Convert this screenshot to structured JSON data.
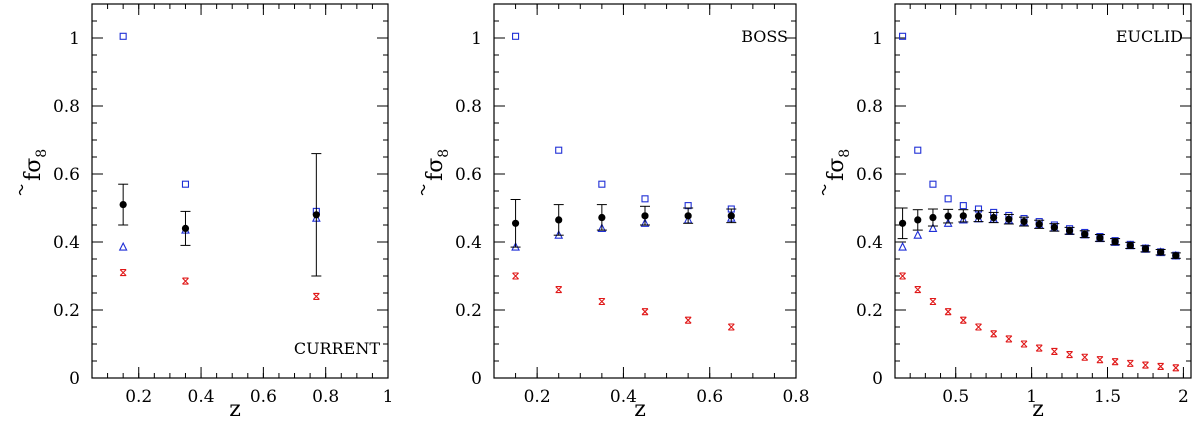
{
  "chart_data": [
    {
      "type": "scatter",
      "label": "CURRENT",
      "label_position": "bottom-right",
      "xlabel": "z",
      "ylabel_main": "f",
      "ylabel_sub": "8",
      "xlim": [
        0.05,
        1.0
      ],
      "ylim": [
        0,
        1.1
      ],
      "xticks": [
        {
          "value": 0.2,
          "label": "0.2"
        },
        {
          "value": 0.4,
          "label": "0.4"
        },
        {
          "value": 0.6,
          "label": "0.6"
        },
        {
          "value": 0.8,
          "label": "0.8"
        },
        {
          "value": 1.0,
          "label": "1"
        }
      ],
      "xminor_step": 0.05,
      "yticks": [
        {
          "value": 0,
          "label": "0"
        },
        {
          "value": 0.2,
          "label": "0.2"
        },
        {
          "value": 0.4,
          "label": "0.4"
        },
        {
          "value": 0.6,
          "label": "0.6"
        },
        {
          "value": 0.8,
          "label": "0.8"
        },
        {
          "value": 1.0,
          "label": "1"
        }
      ],
      "yminor_step": 0.05,
      "measurements": [
        {
          "x": 0.15,
          "y": 0.51,
          "low": 0.45,
          "high": 0.57
        },
        {
          "x": 0.35,
          "y": 0.44,
          "low": 0.39,
          "high": 0.49
        },
        {
          "x": 0.77,
          "y": 0.48,
          "low": 0.3,
          "high": 0.66
        }
      ],
      "squares": [
        {
          "x": 0.15,
          "y": 1.005
        },
        {
          "x": 0.35,
          "y": 0.57
        },
        {
          "x": 0.77,
          "y": 0.49
        }
      ],
      "triangles": [
        {
          "x": 0.15,
          "y": 0.385
        },
        {
          "x": 0.35,
          "y": 0.435
        },
        {
          "x": 0.77,
          "y": 0.47
        }
      ],
      "stars": [
        {
          "x": 0.15,
          "y": 0.31
        },
        {
          "x": 0.35,
          "y": 0.285
        },
        {
          "x": 0.77,
          "y": 0.24
        }
      ]
    },
    {
      "type": "scatter",
      "label": "BOSS",
      "label_position": "top-right",
      "xlabel": "z",
      "ylabel_main": "f",
      "ylabel_sub": "8",
      "xlim": [
        0.1,
        0.8
      ],
      "ylim": [
        0,
        1.1
      ],
      "xticks": [
        {
          "value": 0.2,
          "label": "0.2"
        },
        {
          "value": 0.4,
          "label": "0.4"
        },
        {
          "value": 0.6,
          "label": "0.6"
        },
        {
          "value": 0.8,
          "label": "0.8"
        }
      ],
      "xminor_step": 0.05,
      "yticks": [
        {
          "value": 0,
          "label": "0"
        },
        {
          "value": 0.2,
          "label": "0.2"
        },
        {
          "value": 0.4,
          "label": "0.4"
        },
        {
          "value": 0.6,
          "label": "0.6"
        },
        {
          "value": 0.8,
          "label": "0.8"
        },
        {
          "value": 1.0,
          "label": "1"
        }
      ],
      "yminor_step": 0.05,
      "measurements": [
        {
          "x": 0.15,
          "y": 0.455,
          "low": 0.385,
          "high": 0.525
        },
        {
          "x": 0.25,
          "y": 0.465,
          "low": 0.42,
          "high": 0.51
        },
        {
          "x": 0.35,
          "y": 0.472,
          "low": 0.435,
          "high": 0.51
        },
        {
          "x": 0.45,
          "y": 0.477,
          "low": 0.45,
          "high": 0.505
        },
        {
          "x": 0.55,
          "y": 0.477,
          "low": 0.455,
          "high": 0.5
        },
        {
          "x": 0.65,
          "y": 0.477,
          "low": 0.457,
          "high": 0.497
        }
      ],
      "squares": [
        {
          "x": 0.15,
          "y": 1.005
        },
        {
          "x": 0.25,
          "y": 0.67
        },
        {
          "x": 0.35,
          "y": 0.57
        },
        {
          "x": 0.45,
          "y": 0.527
        },
        {
          "x": 0.55,
          "y": 0.507
        },
        {
          "x": 0.65,
          "y": 0.497
        }
      ],
      "triangles": [
        {
          "x": 0.15,
          "y": 0.385
        },
        {
          "x": 0.25,
          "y": 0.42
        },
        {
          "x": 0.35,
          "y": 0.44
        },
        {
          "x": 0.45,
          "y": 0.455
        },
        {
          "x": 0.55,
          "y": 0.465
        },
        {
          "x": 0.65,
          "y": 0.47
        }
      ],
      "stars": [
        {
          "x": 0.15,
          "y": 0.3
        },
        {
          "x": 0.25,
          "y": 0.26
        },
        {
          "x": 0.35,
          "y": 0.225
        },
        {
          "x": 0.45,
          "y": 0.195
        },
        {
          "x": 0.55,
          "y": 0.17
        },
        {
          "x": 0.65,
          "y": 0.15
        }
      ]
    },
    {
      "type": "scatter",
      "label": "EUCLID",
      "label_position": "top-right",
      "xlabel": "z",
      "ylabel_main": "f",
      "ylabel_sub": "8",
      "xlim": [
        0.1,
        2.05
      ],
      "ylim": [
        0,
        1.1
      ],
      "xticks": [
        {
          "value": 0.5,
          "label": "0.5"
        },
        {
          "value": 1.0,
          "label": "1"
        },
        {
          "value": 1.5,
          "label": "1.5"
        },
        {
          "value": 2.0,
          "label": "2"
        }
      ],
      "xminor_step": 0.1,
      "yticks": [
        {
          "value": 0,
          "label": "0"
        },
        {
          "value": 0.2,
          "label": "0.2"
        },
        {
          "value": 0.4,
          "label": "0.4"
        },
        {
          "value": 0.6,
          "label": "0.6"
        },
        {
          "value": 0.8,
          "label": "0.8"
        },
        {
          "value": 1.0,
          "label": "1"
        }
      ],
      "yminor_step": 0.05,
      "measurements": [
        {
          "x": 0.15,
          "y": 0.455,
          "low": 0.41,
          "high": 0.5
        },
        {
          "x": 0.25,
          "y": 0.465,
          "low": 0.435,
          "high": 0.495
        },
        {
          "x": 0.35,
          "y": 0.472,
          "low": 0.447,
          "high": 0.497
        },
        {
          "x": 0.45,
          "y": 0.476,
          "low": 0.456,
          "high": 0.496
        },
        {
          "x": 0.55,
          "y": 0.477,
          "low": 0.459,
          "high": 0.495
        },
        {
          "x": 0.65,
          "y": 0.476,
          "low": 0.46,
          "high": 0.492
        },
        {
          "x": 0.75,
          "y": 0.472,
          "low": 0.457,
          "high": 0.487
        },
        {
          "x": 0.85,
          "y": 0.467,
          "low": 0.453,
          "high": 0.481
        },
        {
          "x": 0.95,
          "y": 0.46,
          "low": 0.447,
          "high": 0.473
        },
        {
          "x": 1.05,
          "y": 0.452,
          "low": 0.44,
          "high": 0.464
        },
        {
          "x": 1.15,
          "y": 0.443,
          "low": 0.432,
          "high": 0.454
        },
        {
          "x": 1.25,
          "y": 0.433,
          "low": 0.423,
          "high": 0.443
        },
        {
          "x": 1.35,
          "y": 0.423,
          "low": 0.413,
          "high": 0.433
        },
        {
          "x": 1.45,
          "y": 0.412,
          "low": 0.402,
          "high": 0.422
        },
        {
          "x": 1.55,
          "y": 0.401,
          "low": 0.392,
          "high": 0.41
        },
        {
          "x": 1.65,
          "y": 0.39,
          "low": 0.381,
          "high": 0.399
        },
        {
          "x": 1.75,
          "y": 0.38,
          "low": 0.371,
          "high": 0.389
        },
        {
          "x": 1.85,
          "y": 0.37,
          "low": 0.362,
          "high": 0.378
        },
        {
          "x": 1.95,
          "y": 0.36,
          "low": 0.352,
          "high": 0.368
        }
      ],
      "squares": [
        {
          "x": 0.15,
          "y": 1.005
        },
        {
          "x": 0.25,
          "y": 0.67
        },
        {
          "x": 0.35,
          "y": 0.57
        },
        {
          "x": 0.45,
          "y": 0.527
        },
        {
          "x": 0.55,
          "y": 0.507
        },
        {
          "x": 0.65,
          "y": 0.497
        },
        {
          "x": 0.75,
          "y": 0.487
        },
        {
          "x": 0.85,
          "y": 0.478
        },
        {
          "x": 0.95,
          "y": 0.469
        },
        {
          "x": 1.05,
          "y": 0.46
        },
        {
          "x": 1.15,
          "y": 0.45
        },
        {
          "x": 1.25,
          "y": 0.439
        },
        {
          "x": 1.35,
          "y": 0.428
        },
        {
          "x": 1.45,
          "y": 0.416
        },
        {
          "x": 1.55,
          "y": 0.404
        },
        {
          "x": 1.65,
          "y": 0.393
        },
        {
          "x": 1.75,
          "y": 0.382
        },
        {
          "x": 1.85,
          "y": 0.371
        },
        {
          "x": 1.95,
          "y": 0.361
        }
      ],
      "triangles": [
        {
          "x": 0.15,
          "y": 0.385
        },
        {
          "x": 0.25,
          "y": 0.42
        },
        {
          "x": 0.35,
          "y": 0.44
        },
        {
          "x": 0.45,
          "y": 0.455
        },
        {
          "x": 0.55,
          "y": 0.465
        },
        {
          "x": 0.65,
          "y": 0.468
        },
        {
          "x": 0.75,
          "y": 0.467
        },
        {
          "x": 0.85,
          "y": 0.464
        },
        {
          "x": 0.95,
          "y": 0.458
        },
        {
          "x": 1.05,
          "y": 0.45
        },
        {
          "x": 1.15,
          "y": 0.441
        },
        {
          "x": 1.25,
          "y": 0.431
        },
        {
          "x": 1.35,
          "y": 0.421
        },
        {
          "x": 1.45,
          "y": 0.41
        },
        {
          "x": 1.55,
          "y": 0.399
        },
        {
          "x": 1.65,
          "y": 0.389
        },
        {
          "x": 1.75,
          "y": 0.379
        },
        {
          "x": 1.85,
          "y": 0.369
        },
        {
          "x": 1.95,
          "y": 0.359
        }
      ],
      "stars": [
        {
          "x": 0.15,
          "y": 0.3
        },
        {
          "x": 0.25,
          "y": 0.26
        },
        {
          "x": 0.35,
          "y": 0.225
        },
        {
          "x": 0.45,
          "y": 0.195
        },
        {
          "x": 0.55,
          "y": 0.17
        },
        {
          "x": 0.65,
          "y": 0.15
        },
        {
          "x": 0.75,
          "y": 0.13
        },
        {
          "x": 0.85,
          "y": 0.115
        },
        {
          "x": 0.95,
          "y": 0.1
        },
        {
          "x": 1.05,
          "y": 0.088
        },
        {
          "x": 1.15,
          "y": 0.078
        },
        {
          "x": 1.25,
          "y": 0.069
        },
        {
          "x": 1.35,
          "y": 0.061
        },
        {
          "x": 1.45,
          "y": 0.054
        },
        {
          "x": 1.55,
          "y": 0.048
        },
        {
          "x": 1.65,
          "y": 0.043
        },
        {
          "x": 1.75,
          "y": 0.038
        },
        {
          "x": 1.85,
          "y": 0.034
        },
        {
          "x": 1.95,
          "y": 0.03
        }
      ]
    }
  ],
  "colors": {
    "measurement": "#000000",
    "square": "#1f2fd6",
    "triangle": "#1f2fd6",
    "star": "#e01818"
  }
}
